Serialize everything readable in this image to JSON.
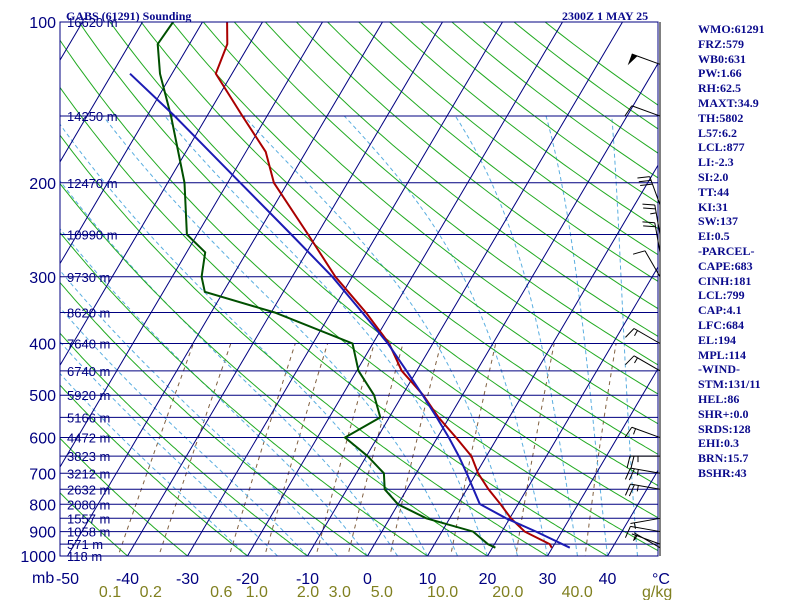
{
  "header": {
    "station": "GABS (61291) Sounding",
    "time": "2300Z  1 MAY 25"
  },
  "colors": {
    "frame": "#000080",
    "isobar": "#000080",
    "isotherm": "#000080",
    "dry_adiabat": "#22aa22",
    "moist_adiabat": "#5aaee0",
    "mixing_ratio": "#806040",
    "temperature": "#aa0000",
    "dewpoint": "#005000",
    "parcel": "#1c1cb4",
    "axis_text": "#000080",
    "mixing_ratio_text": "#808020",
    "wind_barb": "#000000"
  },
  "indices": [
    "WMO:61291",
    "FRZ:579",
    "WB0:631",
    "PW:1.66",
    "RH:62.5",
    "MAXT:34.9",
    "TH:5802",
    "L57:6.2",
    "LCL:877",
    "LI:-2.3",
    "SI:2.0",
    "TT:44",
    "KI:31",
    "SW:137",
    "EI:0.5",
    "-PARCEL-",
    "CAPE:683",
    "CINH:181",
    "LCL:799",
    "CAP:4.1",
    "LFC:684",
    "EL:194",
    "MPL:114",
    "-WIND-",
    "STM:131/11",
    "HEL:86",
    "SHR+:0.0",
    "SRDS:128",
    "EHI:0.3",
    "BRN:15.7",
    "BSHR:43"
  ],
  "chart_data": {
    "type": "skew-t",
    "xlabel": "°C",
    "ylabel": "mb",
    "xlim": [
      -50,
      50
    ],
    "ylim": [
      1000,
      100
    ],
    "pressure_ticks": [
      100,
      200,
      300,
      400,
      500,
      600,
      700,
      800,
      900,
      1000
    ],
    "temperature_ticks": [
      -50,
      -40,
      -30,
      -20,
      -10,
      0,
      10,
      20,
      30,
      40
    ],
    "height_labels": [
      {
        "p": 100,
        "label": "16620 m"
      },
      {
        "p": 150,
        "label": "14250 m"
      },
      {
        "p": 200,
        "label": "12470 m"
      },
      {
        "p": 250,
        "label": "10990 m"
      },
      {
        "p": 300,
        "label": "9730 m"
      },
      {
        "p": 350,
        "label": "8620 m"
      },
      {
        "p": 400,
        "label": "7640 m"
      },
      {
        "p": 450,
        "label": "6740 m"
      },
      {
        "p": 500,
        "label": "5920 m"
      },
      {
        "p": 550,
        "label": "5166 m"
      },
      {
        "p": 600,
        "label": "4472 m"
      },
      {
        "p": 650,
        "label": "3823 m"
      },
      {
        "p": 700,
        "label": "3212 m"
      },
      {
        "p": 750,
        "label": "2632 m"
      },
      {
        "p": 800,
        "label": "2080 m"
      },
      {
        "p": 850,
        "label": "1557 m"
      },
      {
        "p": 900,
        "label": "1058 m"
      },
      {
        "p": 950,
        "label": "571 m"
      },
      {
        "p": 1000,
        "label": "118 m"
      }
    ],
    "mixing_ratio_ticks": [
      {
        "w": 0.1,
        "label": "0.1"
      },
      {
        "w": 0.2,
        "label": "0.2"
      },
      {
        "w": 0.6,
        "label": "0.6"
      },
      {
        "w": 1.0,
        "label": "1.0"
      },
      {
        "w": 2.0,
        "label": "2.0"
      },
      {
        "w": 3.0,
        "label": "3.0"
      },
      {
        "w": 5.0,
        "label": "5.0"
      },
      {
        "w": 10.0,
        "label": "10.0"
      },
      {
        "w": 20.0,
        "label": "20.0"
      },
      {
        "w": 40.0,
        "label": "40.0"
      }
    ],
    "mixing_ratio_unit": "g/kg",
    "series": [
      {
        "name": "Temperature",
        "points": [
          {
            "p": 965,
            "t": 29.9
          },
          {
            "p": 950,
            "t": 29.2
          },
          {
            "p": 900,
            "t": 23.8
          },
          {
            "p": 850,
            "t": 20.2
          },
          {
            "p": 800,
            "t": 17.1
          },
          {
            "p": 750,
            "t": 13.6
          },
          {
            "p": 700,
            "t": 10.3
          },
          {
            "p": 650,
            "t": 7.5
          },
          {
            "p": 600,
            "t": 3.1
          },
          {
            "p": 550,
            "t": -1.8
          },
          {
            "p": 500,
            "t": -6.5
          },
          {
            "p": 450,
            "t": -12.5
          },
          {
            "p": 400,
            "t": -17.3
          },
          {
            "p": 350,
            "t": -24.2
          },
          {
            "p": 300,
            "t": -32.8
          },
          {
            "p": 250,
            "t": -41.5
          },
          {
            "p": 200,
            "t": -52.3
          },
          {
            "p": 175,
            "t": -56.7
          },
          {
            "p": 150,
            "t": -64.1
          },
          {
            "p": 125,
            "t": -72.7
          },
          {
            "p": 110,
            "t": -73.7
          },
          {
            "p": 100,
            "t": -75.9
          }
        ]
      },
      {
        "name": "Dewpoint",
        "points": [
          {
            "p": 965,
            "t": 20.5
          },
          {
            "p": 950,
            "t": 18.9
          },
          {
            "p": 900,
            "t": 15.2
          },
          {
            "p": 850,
            "t": 6.1
          },
          {
            "p": 800,
            "t": 0.0
          },
          {
            "p": 750,
            "t": -3.7
          },
          {
            "p": 700,
            "t": -5.4
          },
          {
            "p": 650,
            "t": -9.8
          },
          {
            "p": 600,
            "t": -15.4
          },
          {
            "p": 550,
            "t": -11.5
          },
          {
            "p": 500,
            "t": -14.7
          },
          {
            "p": 450,
            "t": -19.7
          },
          {
            "p": 400,
            "t": -23.4
          },
          {
            "p": 350,
            "t": -39.4
          },
          {
            "p": 320,
            "t": -53.1
          },
          {
            "p": 300,
            "t": -55.1
          },
          {
            "p": 270,
            "t": -56.9
          },
          {
            "p": 250,
            "t": -61.7
          },
          {
            "p": 200,
            "t": -67.2
          },
          {
            "p": 150,
            "t": -76.0
          },
          {
            "p": 125,
            "t": -82.0
          },
          {
            "p": 110,
            "t": -85.3
          },
          {
            "p": 100,
            "t": -84.9
          }
        ]
      },
      {
        "name": "Parcel",
        "points": [
          {
            "p": 965,
            "t": 32.9
          },
          {
            "p": 900,
            "t": 25.7
          },
          {
            "p": 850,
            "t": 19.4
          },
          {
            "p": 799,
            "t": 13.6
          },
          {
            "p": 750,
            "t": 11.1
          },
          {
            "p": 700,
            "t": 8.4
          },
          {
            "p": 650,
            "t": 5.4
          },
          {
            "p": 600,
            "t": 1.9
          },
          {
            "p": 550,
            "t": -2.1
          },
          {
            "p": 500,
            "t": -6.6
          },
          {
            "p": 450,
            "t": -11.7
          },
          {
            "p": 400,
            "t": -17.5
          },
          {
            "p": 350,
            "t": -24.8
          },
          {
            "p": 300,
            "t": -33.3
          },
          {
            "p": 250,
            "t": -44.3
          },
          {
            "p": 200,
            "t": -57.9
          },
          {
            "p": 150,
            "t": -75.4
          },
          {
            "p": 125,
            "t": -87.0
          }
        ]
      }
    ],
    "wind_barbs": [
      {
        "p": 965,
        "dir": 300,
        "kt": 5
      },
      {
        "p": 950,
        "dir": 290,
        "kt": 5
      },
      {
        "p": 900,
        "dir": 280,
        "kt": 10
      },
      {
        "p": 850,
        "dir": 260,
        "kt": 5
      },
      {
        "p": 750,
        "dir": 280,
        "kt": 25
      },
      {
        "p": 700,
        "dir": 280,
        "kt": 25
      },
      {
        "p": 650,
        "dir": 270,
        "kt": 25
      },
      {
        "p": 600,
        "dir": 290,
        "kt": 15
      },
      {
        "p": 450,
        "dir": 300,
        "kt": 15
      },
      {
        "p": 400,
        "dir": 300,
        "kt": 15
      },
      {
        "p": 300,
        "dir": 330,
        "kt": 10
      },
      {
        "p": 270,
        "dir": 350,
        "kt": 20
      },
      {
        "p": 250,
        "dir": 350,
        "kt": 25
      },
      {
        "p": 220,
        "dir": 340,
        "kt": 30
      },
      {
        "p": 150,
        "dir": 290,
        "kt": 10
      },
      {
        "p": 120,
        "dir": 290,
        "kt": 50
      }
    ]
  }
}
